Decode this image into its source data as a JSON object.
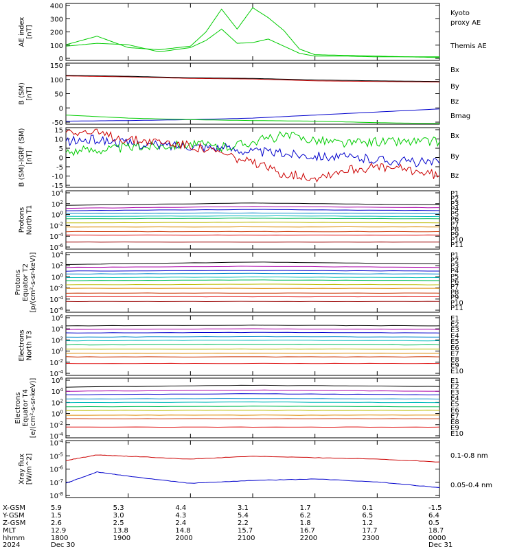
{
  "panels": [
    {
      "ylabel": "AE index\n[nT]",
      "ticks": [
        "400",
        "300",
        "200",
        "100",
        "0"
      ],
      "legend": [
        {
          "text": "Kyoto",
          "color": "#00cc00"
        },
        {
          "text": "proxy AE",
          "color": "#00cc00"
        },
        {
          "text": "Themis AE",
          "color": "#000000"
        }
      ]
    },
    {
      "ylabel": "B (SM)\n[nT]",
      "ticks": [
        "150",
        "100",
        "50",
        "0",
        "-50"
      ],
      "legend": [
        {
          "text": "Bx",
          "color": "#0000cc"
        },
        {
          "text": "By",
          "color": "#00cc00"
        },
        {
          "text": "Bz",
          "color": "#cc0000"
        },
        {
          "text": "Bmag",
          "color": "#000000"
        }
      ]
    },
    {
      "ylabel": "B (SM)-IGRF (SM)\n[nT]",
      "ticks": [
        "15",
        "10",
        "5",
        "0",
        "-5",
        "-10",
        "-15"
      ],
      "legend": [
        {
          "text": "Bx",
          "color": "#0000cc"
        },
        {
          "text": "By",
          "color": "#00cc00"
        },
        {
          "text": "Bz",
          "color": "#cc0000"
        }
      ]
    },
    {
      "ylabel": "Protons\nNorth T1",
      "ticks": [
        "10^4",
        "10^2",
        "10^0",
        "10^-2",
        "10^-4",
        "10^-6"
      ],
      "legend": [
        "P1",
        "P2",
        "P3",
        "P4",
        "P5",
        "P6",
        "P7",
        "P8",
        "P9",
        "P10",
        "P11"
      ]
    },
    {
      "ylabel": "Protons\nEquator T2\n[p/(cm²-s-sr-keV)]",
      "ticks": [
        "10^4",
        "10^2",
        "10^0",
        "10^-2",
        "10^-4",
        "10^-6"
      ],
      "legend": [
        "P1",
        "P2",
        "P3",
        "P4",
        "P5",
        "P6",
        "P7",
        "P8",
        "P9",
        "P10",
        "P11"
      ]
    },
    {
      "ylabel": "Electrons\nNorth T3",
      "ticks": [
        "10^6",
        "10^4",
        "10^2",
        "10^0",
        "10^-2",
        "10^-4"
      ],
      "legend": [
        "E1",
        "E2",
        "E3",
        "E4",
        "E5",
        "E6",
        "E7",
        "E8",
        "E9",
        "E10"
      ]
    },
    {
      "ylabel": "Electrons\nEquator T4\n[e/(cm²-s-sr-keV)]",
      "ticks": [
        "10^6",
        "10^4",
        "10^2",
        "10^0",
        "10^-2",
        "10^-4"
      ],
      "legend": [
        "E1",
        "E2",
        "E3",
        "E4",
        "E5",
        "E6",
        "E7",
        "E8",
        "E9",
        "E10"
      ]
    },
    {
      "ylabel": "Xray flux\n[W/m^2]",
      "ticks": [
        "10^-4",
        "10^-5",
        "10^-6",
        "10^-7",
        "10^-8"
      ],
      "legend": [
        {
          "text": "0.1-0.8 nm",
          "color": "#cc0000"
        },
        {
          "text": "0.05-0.4 nm",
          "color": "#0000cc"
        }
      ]
    }
  ],
  "channel_colors": [
    "#000000",
    "#aa00aa",
    "#0000cc",
    "#0088cc",
    "#00bbbb",
    "#00bb55",
    "#bbbb00",
    "#dd8800",
    "#cc3300",
    "#dd0000",
    "#990000"
  ],
  "axis": {
    "row_labels": [
      "X-GSM",
      "Y-GSM",
      "Z-GSM",
      "MLT",
      "hhmm",
      "2024"
    ],
    "columns": [
      [
        "5.9",
        "1.5",
        "2.6",
        "12.9",
        "1800",
        "Dec 30"
      ],
      [
        "5.3",
        "3.0",
        "2.5",
        "13.8",
        "1900",
        ""
      ],
      [
        "4.4",
        "4.3",
        "2.4",
        "14.8",
        "2000",
        ""
      ],
      [
        "3.1",
        "5.4",
        "2.2",
        "15.7",
        "2100",
        ""
      ],
      [
        "1.7",
        "6.2",
        "1.8",
        "16.7",
        "2200",
        ""
      ],
      [
        "0.1",
        "6.5",
        "1.2",
        "17.7",
        "2300",
        ""
      ],
      [
        "-1.5",
        "6.4",
        "0.5",
        "18.7",
        "0000",
        "Dec 31"
      ]
    ]
  },
  "chart_data": [
    {
      "type": "line",
      "name": "AE index",
      "ylim": [
        0,
        400
      ],
      "x": [
        "18:00",
        "18:30",
        "19:00",
        "19:30",
        "20:00",
        "20:15",
        "20:30",
        "20:45",
        "21:00",
        "21:15",
        "21:30",
        "21:45",
        "22:00",
        "22:30",
        "23:00",
        "23:30",
        "24:00"
      ],
      "series": [
        {
          "name": "Kyoto proxy AE",
          "values": [
            110,
            170,
            90,
            75,
            100,
            200,
            360,
            220,
            370,
            300,
            210,
            80,
            40,
            35,
            30,
            25,
            25
          ]
        },
        {
          "name": "Themis AE",
          "values": [
            100,
            120,
            110,
            60,
            90,
            140,
            220,
            120,
            125,
            150,
            100,
            50,
            30,
            30,
            25,
            25,
            20
          ]
        }
      ]
    },
    {
      "type": "line",
      "name": "B (SM)",
      "ylim": [
        -50,
        150
      ],
      "x": [
        "18:00",
        "19:00",
        "20:00",
        "21:00",
        "22:00",
        "23:00",
        "24:00"
      ],
      "series": [
        {
          "name": "Bx",
          "values": [
            -40,
            -38,
            -35,
            -30,
            -20,
            -10,
            0
          ]
        },
        {
          "name": "By",
          "values": [
            -20,
            -30,
            -35,
            -38,
            -40,
            -45,
            -48
          ]
        },
        {
          "name": "Bz",
          "values": [
            108,
            105,
            100,
            98,
            92,
            90,
            88
          ]
        },
        {
          "name": "Bmag",
          "values": [
            110,
            107,
            102,
            100,
            95,
            92,
            90
          ]
        }
      ]
    },
    {
      "type": "line",
      "name": "B (SM)-IGRF (SM)",
      "ylim": [
        -15,
        15
      ],
      "x": [
        "18:00",
        "18:30",
        "19:00",
        "19:30",
        "20:00",
        "20:30",
        "21:00",
        "21:30",
        "22:00",
        "22:30",
        "23:00",
        "23:30",
        "24:00"
      ],
      "series": [
        {
          "name": "Bx",
          "values": [
            8,
            9,
            7,
            6,
            6,
            5,
            3,
            2,
            1,
            0,
            -1,
            -2,
            -3
          ]
        },
        {
          "name": "By",
          "values": [
            3,
            4,
            5,
            6,
            7,
            5,
            8,
            11,
            9,
            7,
            8,
            8,
            8
          ]
        },
        {
          "name": "Bz",
          "values": [
            14,
            12,
            9,
            8,
            6,
            2,
            -3,
            -8,
            -10,
            -6,
            -5,
            -6,
            -9
          ]
        }
      ]
    },
    {
      "type": "line",
      "name": "Protons North T1",
      "scale": "log",
      "ylim": [
        -6,
        4
      ],
      "x": [
        "18:00",
        "21:00",
        "24:00"
      ],
      "series": [
        {
          "name": "P1",
          "values": [
            1.5,
            1.9,
            1.6
          ]
        },
        {
          "name": "P2",
          "values": [
            1.0,
            1.3,
            1.1
          ]
        },
        {
          "name": "P3",
          "values": [
            0.6,
            0.8,
            0.6
          ]
        },
        {
          "name": "P4",
          "values": [
            0.1,
            0.2,
            0.1
          ]
        },
        {
          "name": "P5",
          "values": [
            -0.4,
            -0.3,
            -0.4
          ]
        },
        {
          "name": "P6",
          "values": [
            -0.8,
            -0.7,
            -0.8
          ]
        },
        {
          "name": "P7",
          "values": [
            -1.5,
            -1.4,
            -1.5
          ]
        },
        {
          "name": "P8",
          "values": [
            -2.2,
            -2.2,
            -2.2
          ]
        },
        {
          "name": "P9",
          "values": [
            -3.0,
            -3.0,
            -3.0
          ]
        },
        {
          "name": "P10",
          "values": [
            -3.6,
            -3.6,
            -3.6
          ]
        },
        {
          "name": "P11",
          "values": [
            -4.8,
            -4.8,
            -4.8
          ]
        }
      ]
    },
    {
      "type": "line",
      "name": "Protons Equator T2",
      "scale": "log",
      "ylim": [
        -6,
        4
      ],
      "x": [
        "18:00",
        "21:00",
        "24:00"
      ],
      "series": [
        {
          "name": "P1",
          "values": [
            2.0,
            2.4,
            2.1
          ]
        },
        {
          "name": "P2",
          "values": [
            1.5,
            1.7,
            1.5
          ]
        },
        {
          "name": "P3",
          "values": [
            0.9,
            1.0,
            0.9
          ]
        },
        {
          "name": "P4",
          "values": [
            0.4,
            0.5,
            0.4
          ]
        },
        {
          "name": "P5",
          "values": [
            -0.2,
            -0.1,
            -0.2
          ]
        },
        {
          "name": "P6",
          "values": [
            -0.7,
            -0.6,
            -0.7
          ]
        },
        {
          "name": "P7",
          "values": [
            -1.4,
            -1.3,
            -1.4
          ]
        },
        {
          "name": "P8",
          "values": [
            -2.0,
            -2.0,
            -2.0
          ]
        },
        {
          "name": "P9",
          "values": [
            -2.8,
            -2.8,
            -2.8
          ]
        },
        {
          "name": "P10",
          "values": [
            -3.4,
            -3.4,
            -3.4
          ]
        },
        {
          "name": "P11",
          "values": [
            -4.2,
            -4.2,
            -4.2
          ]
        }
      ]
    },
    {
      "type": "line",
      "name": "Electrons North T3",
      "scale": "log",
      "ylim": [
        -4,
        6
      ],
      "x": [
        "18:00",
        "21:00",
        "24:00"
      ],
      "series": [
        {
          "name": "E1",
          "values": [
            4.3,
            4.4,
            4.3
          ]
        },
        {
          "name": "E2",
          "values": [
            3.7,
            3.8,
            3.7
          ]
        },
        {
          "name": "E3",
          "values": [
            3.1,
            3.2,
            3.1
          ]
        },
        {
          "name": "E4",
          "values": [
            2.4,
            2.5,
            2.4
          ]
        },
        {
          "name": "E5",
          "values": [
            1.8,
            1.9,
            1.8
          ]
        },
        {
          "name": "E6",
          "values": [
            1.1,
            1.2,
            1.1
          ]
        },
        {
          "name": "E7",
          "values": [
            0.4,
            0.4,
            0.4
          ]
        },
        {
          "name": "E8",
          "values": [
            -0.3,
            -0.3,
            -0.3
          ]
        },
        {
          "name": "E9",
          "values": [
            -0.9,
            -0.9,
            -0.9
          ]
        },
        {
          "name": "E10",
          "values": [
            -2.0,
            -2.0,
            -2.0
          ]
        }
      ]
    },
    {
      "type": "line",
      "name": "Electrons Equator T4",
      "scale": "log",
      "ylim": [
        -4,
        6
      ],
      "x": [
        "18:00",
        "21:00",
        "24:00"
      ],
      "series": [
        {
          "name": "E1",
          "values": [
            4.5,
            4.8,
            4.6
          ]
        },
        {
          "name": "E2",
          "values": [
            3.8,
            4.0,
            3.8
          ]
        },
        {
          "name": "E3",
          "values": [
            3.2,
            3.4,
            3.2
          ]
        },
        {
          "name": "E4",
          "values": [
            2.5,
            2.6,
            2.5
          ]
        },
        {
          "name": "E5",
          "values": [
            1.9,
            2.0,
            1.9
          ]
        },
        {
          "name": "E6",
          "values": [
            1.2,
            1.3,
            1.2
          ]
        },
        {
          "name": "E7",
          "values": [
            0.6,
            0.6,
            0.6
          ]
        },
        {
          "name": "E8",
          "values": [
            -0.2,
            -0.2,
            -0.2
          ]
        },
        {
          "name": "E9",
          "values": [
            -0.8,
            -0.8,
            -0.8
          ]
        },
        {
          "name": "E10",
          "values": [
            -2.2,
            -2.2,
            -2.2
          ]
        }
      ]
    },
    {
      "type": "line",
      "name": "Xray flux",
      "scale": "log",
      "ylim": [
        -8,
        -4
      ],
      "x": [
        "18:00",
        "18:30",
        "19:00",
        "20:00",
        "21:00",
        "22:00",
        "23:00",
        "24:00"
      ],
      "series": [
        {
          "name": "0.1-0.8 nm",
          "values": [
            -5.4,
            -5.0,
            -5.1,
            -5.3,
            -5.1,
            -5.2,
            -5.3,
            -5.5
          ]
        },
        {
          "name": "0.05-0.4 nm",
          "values": [
            -7.0,
            -6.2,
            -6.5,
            -7.0,
            -6.8,
            -6.7,
            -6.9,
            -7.3
          ]
        }
      ]
    }
  ]
}
